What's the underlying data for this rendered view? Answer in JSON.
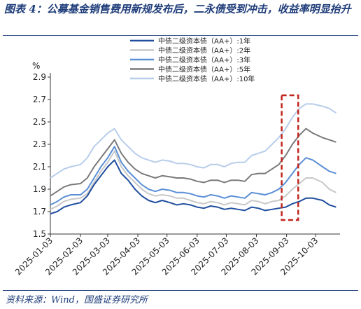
{
  "title": "图表 4：公募基金销售费用新规发布后，二永债受到冲击，收益率明显抬升",
  "source": "资料来源：Wind，国盛证券研究所",
  "chart_data": {
    "type": "line",
    "ylabel": "%",
    "ylim": [
      1.5,
      2.9
    ],
    "yticks": [
      "1.5",
      "1.7",
      "1.9",
      "2.1",
      "2.3",
      "2.5",
      "2.7",
      "2.9"
    ],
    "xticks": [
      "2025-01-03",
      "2025-02-03",
      "2025-03-03",
      "2025-04-03",
      "2025-05-03",
      "2025-06-03",
      "2025-07-03",
      "2025-08-03",
      "2025-09-03",
      "2025-10-03"
    ],
    "grid": false,
    "legend_position": "top-right",
    "highlight_range": [
      "2025-08-29",
      "2025-09-15"
    ],
    "highlight_color": "#c0261f",
    "x": [
      "2025-01-03",
      "2025-01-10",
      "2025-01-17",
      "2025-01-24",
      "2025-02-03",
      "2025-02-10",
      "2025-02-17",
      "2025-02-24",
      "2025-03-03",
      "2025-03-10",
      "2025-03-17",
      "2025-03-24",
      "2025-03-31",
      "2025-04-07",
      "2025-04-14",
      "2025-04-21",
      "2025-04-28",
      "2025-05-06",
      "2025-05-13",
      "2025-05-20",
      "2025-05-27",
      "2025-06-03",
      "2025-06-10",
      "2025-06-17",
      "2025-06-24",
      "2025-07-01",
      "2025-07-08",
      "2025-07-15",
      "2025-07-22",
      "2025-07-29",
      "2025-08-05",
      "2025-08-12",
      "2025-08-19",
      "2025-08-26",
      "2025-09-02",
      "2025-09-09",
      "2025-09-16",
      "2025-09-23",
      "2025-09-30",
      "2025-10-10",
      "2025-10-17",
      "2025-10-24"
    ],
    "series": [
      {
        "name": "中债二级资本债（AA+）:1年",
        "color": "#1f4e9e",
        "values": [
          1.68,
          1.7,
          1.74,
          1.76,
          1.78,
          1.84,
          1.94,
          2.02,
          2.1,
          2.16,
          2.04,
          1.98,
          1.9,
          1.84,
          1.8,
          1.78,
          1.8,
          1.78,
          1.76,
          1.77,
          1.76,
          1.74,
          1.73,
          1.75,
          1.74,
          1.72,
          1.73,
          1.72,
          1.71,
          1.74,
          1.73,
          1.71,
          1.72,
          1.73,
          1.74,
          1.77,
          1.79,
          1.82,
          1.82,
          1.8,
          1.76,
          1.74
        ]
      },
      {
        "name": "中债二级资本债（AA+）:2年",
        "color": "#c8c8c8",
        "values": [
          1.72,
          1.75,
          1.79,
          1.81,
          1.82,
          1.86,
          1.96,
          2.06,
          2.14,
          2.24,
          2.1,
          2.02,
          1.96,
          1.9,
          1.86,
          1.84,
          1.85,
          1.84,
          1.82,
          1.82,
          1.8,
          1.78,
          1.77,
          1.79,
          1.78,
          1.76,
          1.78,
          1.77,
          1.76,
          1.8,
          1.79,
          1.77,
          1.79,
          1.8,
          1.84,
          1.9,
          1.95,
          2.0,
          2.0,
          1.96,
          1.9,
          1.87
        ]
      },
      {
        "name": "中债二级资本债（AA+）:3年",
        "color": "#5b8fd6",
        "values": [
          1.76,
          1.79,
          1.83,
          1.85,
          1.85,
          1.9,
          2.0,
          2.1,
          2.18,
          2.28,
          2.14,
          2.06,
          2.0,
          1.94,
          1.9,
          1.88,
          1.9,
          1.89,
          1.87,
          1.87,
          1.86,
          1.84,
          1.83,
          1.85,
          1.84,
          1.82,
          1.84,
          1.83,
          1.82,
          1.87,
          1.86,
          1.85,
          1.87,
          1.9,
          1.96,
          2.04,
          2.12,
          2.18,
          2.16,
          2.1,
          2.06,
          2.04
        ]
      },
      {
        "name": "中债二级资本债（AA+）:5年",
        "color": "#7a7a7a",
        "values": [
          1.84,
          1.88,
          1.92,
          1.94,
          1.95,
          2.0,
          2.1,
          2.18,
          2.26,
          2.34,
          2.22,
          2.14,
          2.08,
          2.04,
          2.02,
          2.0,
          2.02,
          2.01,
          2.0,
          2.0,
          1.99,
          1.97,
          1.96,
          1.98,
          1.98,
          1.96,
          1.98,
          1.98,
          1.97,
          2.03,
          2.04,
          2.04,
          2.08,
          2.12,
          2.2,
          2.3,
          2.38,
          2.44,
          2.4,
          2.36,
          2.34,
          2.32
        ]
      },
      {
        "name": "中债二级资本债（AA+）:10年",
        "color": "#b8cdea",
        "values": [
          2.0,
          2.04,
          2.08,
          2.1,
          2.12,
          2.18,
          2.28,
          2.34,
          2.4,
          2.44,
          2.34,
          2.28,
          2.22,
          2.18,
          2.16,
          2.14,
          2.16,
          2.15,
          2.13,
          2.13,
          2.12,
          2.1,
          2.09,
          2.12,
          2.12,
          2.1,
          2.13,
          2.14,
          2.14,
          2.2,
          2.22,
          2.24,
          2.3,
          2.36,
          2.44,
          2.54,
          2.62,
          2.66,
          2.66,
          2.64,
          2.62,
          2.58
        ]
      }
    ]
  }
}
